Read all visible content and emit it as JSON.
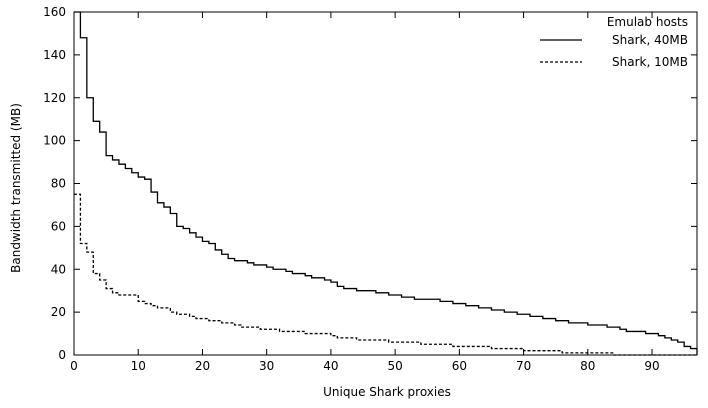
{
  "chart_data": {
    "type": "line",
    "xlabel": "Unique Shark proxies",
    "ylabel": "Bandwidth transmitted (MB)",
    "xlim": [
      0,
      97
    ],
    "ylim": [
      0,
      160
    ],
    "xticks": [
      0,
      10,
      20,
      30,
      40,
      50,
      60,
      70,
      80,
      90
    ],
    "yticks": [
      0,
      20,
      40,
      60,
      80,
      100,
      120,
      140,
      160
    ],
    "grid": false,
    "legend": {
      "title": "Emulab hosts",
      "placement": "top-right"
    },
    "series": [
      {
        "name": "Shark, 40MB",
        "style": "solid",
        "color": "#000000",
        "x": [
          0,
          1,
          2,
          3,
          4,
          5,
          6,
          7,
          8,
          9,
          10,
          11,
          12,
          13,
          14,
          15,
          16,
          17,
          18,
          19,
          20,
          21,
          22,
          23,
          24,
          25,
          26,
          27,
          28,
          29,
          30,
          31,
          32,
          33,
          34,
          35,
          36,
          37,
          38,
          39,
          40,
          41,
          42,
          43,
          44,
          45,
          46,
          47,
          48,
          49,
          50,
          51,
          52,
          53,
          54,
          55,
          56,
          57,
          58,
          59,
          60,
          61,
          62,
          63,
          64,
          65,
          66,
          67,
          68,
          69,
          70,
          71,
          72,
          73,
          74,
          75,
          76,
          77,
          78,
          79,
          80,
          81,
          82,
          83,
          84,
          85,
          86,
          87,
          88,
          89,
          90,
          91,
          92,
          93,
          94,
          95,
          96
        ],
        "y": [
          160,
          148,
          120,
          109,
          104,
          93,
          91,
          89,
          87,
          85,
          83,
          82,
          76,
          71,
          69,
          66,
          60,
          59,
          57,
          55,
          53,
          52,
          49,
          47,
          45,
          44,
          44,
          43,
          42,
          42,
          41,
          40,
          40,
          39,
          38,
          38,
          37,
          36,
          36,
          35,
          34,
          32,
          31,
          31,
          30,
          30,
          30,
          29,
          29,
          28,
          28,
          27,
          27,
          26,
          26,
          26,
          26,
          25,
          25,
          24,
          24,
          23,
          23,
          22,
          22,
          21,
          21,
          20,
          20,
          19,
          19,
          18,
          18,
          17,
          17,
          16,
          16,
          15,
          15,
          15,
          14,
          14,
          14,
          13,
          13,
          12,
          11,
          11,
          11,
          10,
          10,
          9,
          8,
          7,
          6,
          4,
          3
        ]
      },
      {
        "name": "Shark, 10MB",
        "style": "dashed",
        "color": "#000000",
        "x": [
          0,
          1,
          2,
          3,
          4,
          5,
          6,
          7,
          8,
          9,
          10,
          11,
          12,
          13,
          14,
          15,
          16,
          17,
          18,
          19,
          20,
          21,
          22,
          23,
          24,
          25,
          26,
          27,
          28,
          29,
          30,
          31,
          32,
          33,
          34,
          35,
          36,
          37,
          38,
          39,
          40,
          41,
          42,
          43,
          44,
          45,
          46,
          47,
          48,
          49,
          50,
          51,
          52,
          53,
          54,
          55,
          56,
          57,
          58,
          59,
          60,
          61,
          62,
          63,
          64,
          65,
          66,
          67,
          68,
          69,
          70,
          71,
          72,
          73,
          74,
          75,
          76,
          77,
          78,
          79,
          80,
          81,
          82,
          83,
          84,
          85,
          86,
          87,
          88,
          89,
          90,
          91,
          92,
          93,
          94,
          95,
          96
        ],
        "y": [
          75,
          52,
          48,
          38,
          35,
          31,
          29,
          28,
          28,
          28,
          25,
          24,
          23,
          22,
          22,
          20,
          19,
          19,
          18,
          17,
          17,
          16,
          16,
          15,
          15,
          14,
          13,
          13,
          13,
          12,
          12,
          12,
          11,
          11,
          11,
          11,
          10,
          10,
          10,
          10,
          9,
          8,
          8,
          8,
          7,
          7,
          7,
          7,
          7,
          6,
          6,
          6,
          6,
          6,
          5,
          5,
          5,
          5,
          5,
          4,
          4,
          4,
          4,
          4,
          4,
          3,
          3,
          3,
          3,
          3,
          2,
          2,
          2,
          2,
          2,
          2,
          1,
          1,
          1,
          1,
          1,
          1,
          1,
          1,
          0,
          0,
          0,
          0,
          0,
          0,
          0,
          0,
          0,
          0,
          0,
          0,
          0
        ]
      }
    ]
  }
}
